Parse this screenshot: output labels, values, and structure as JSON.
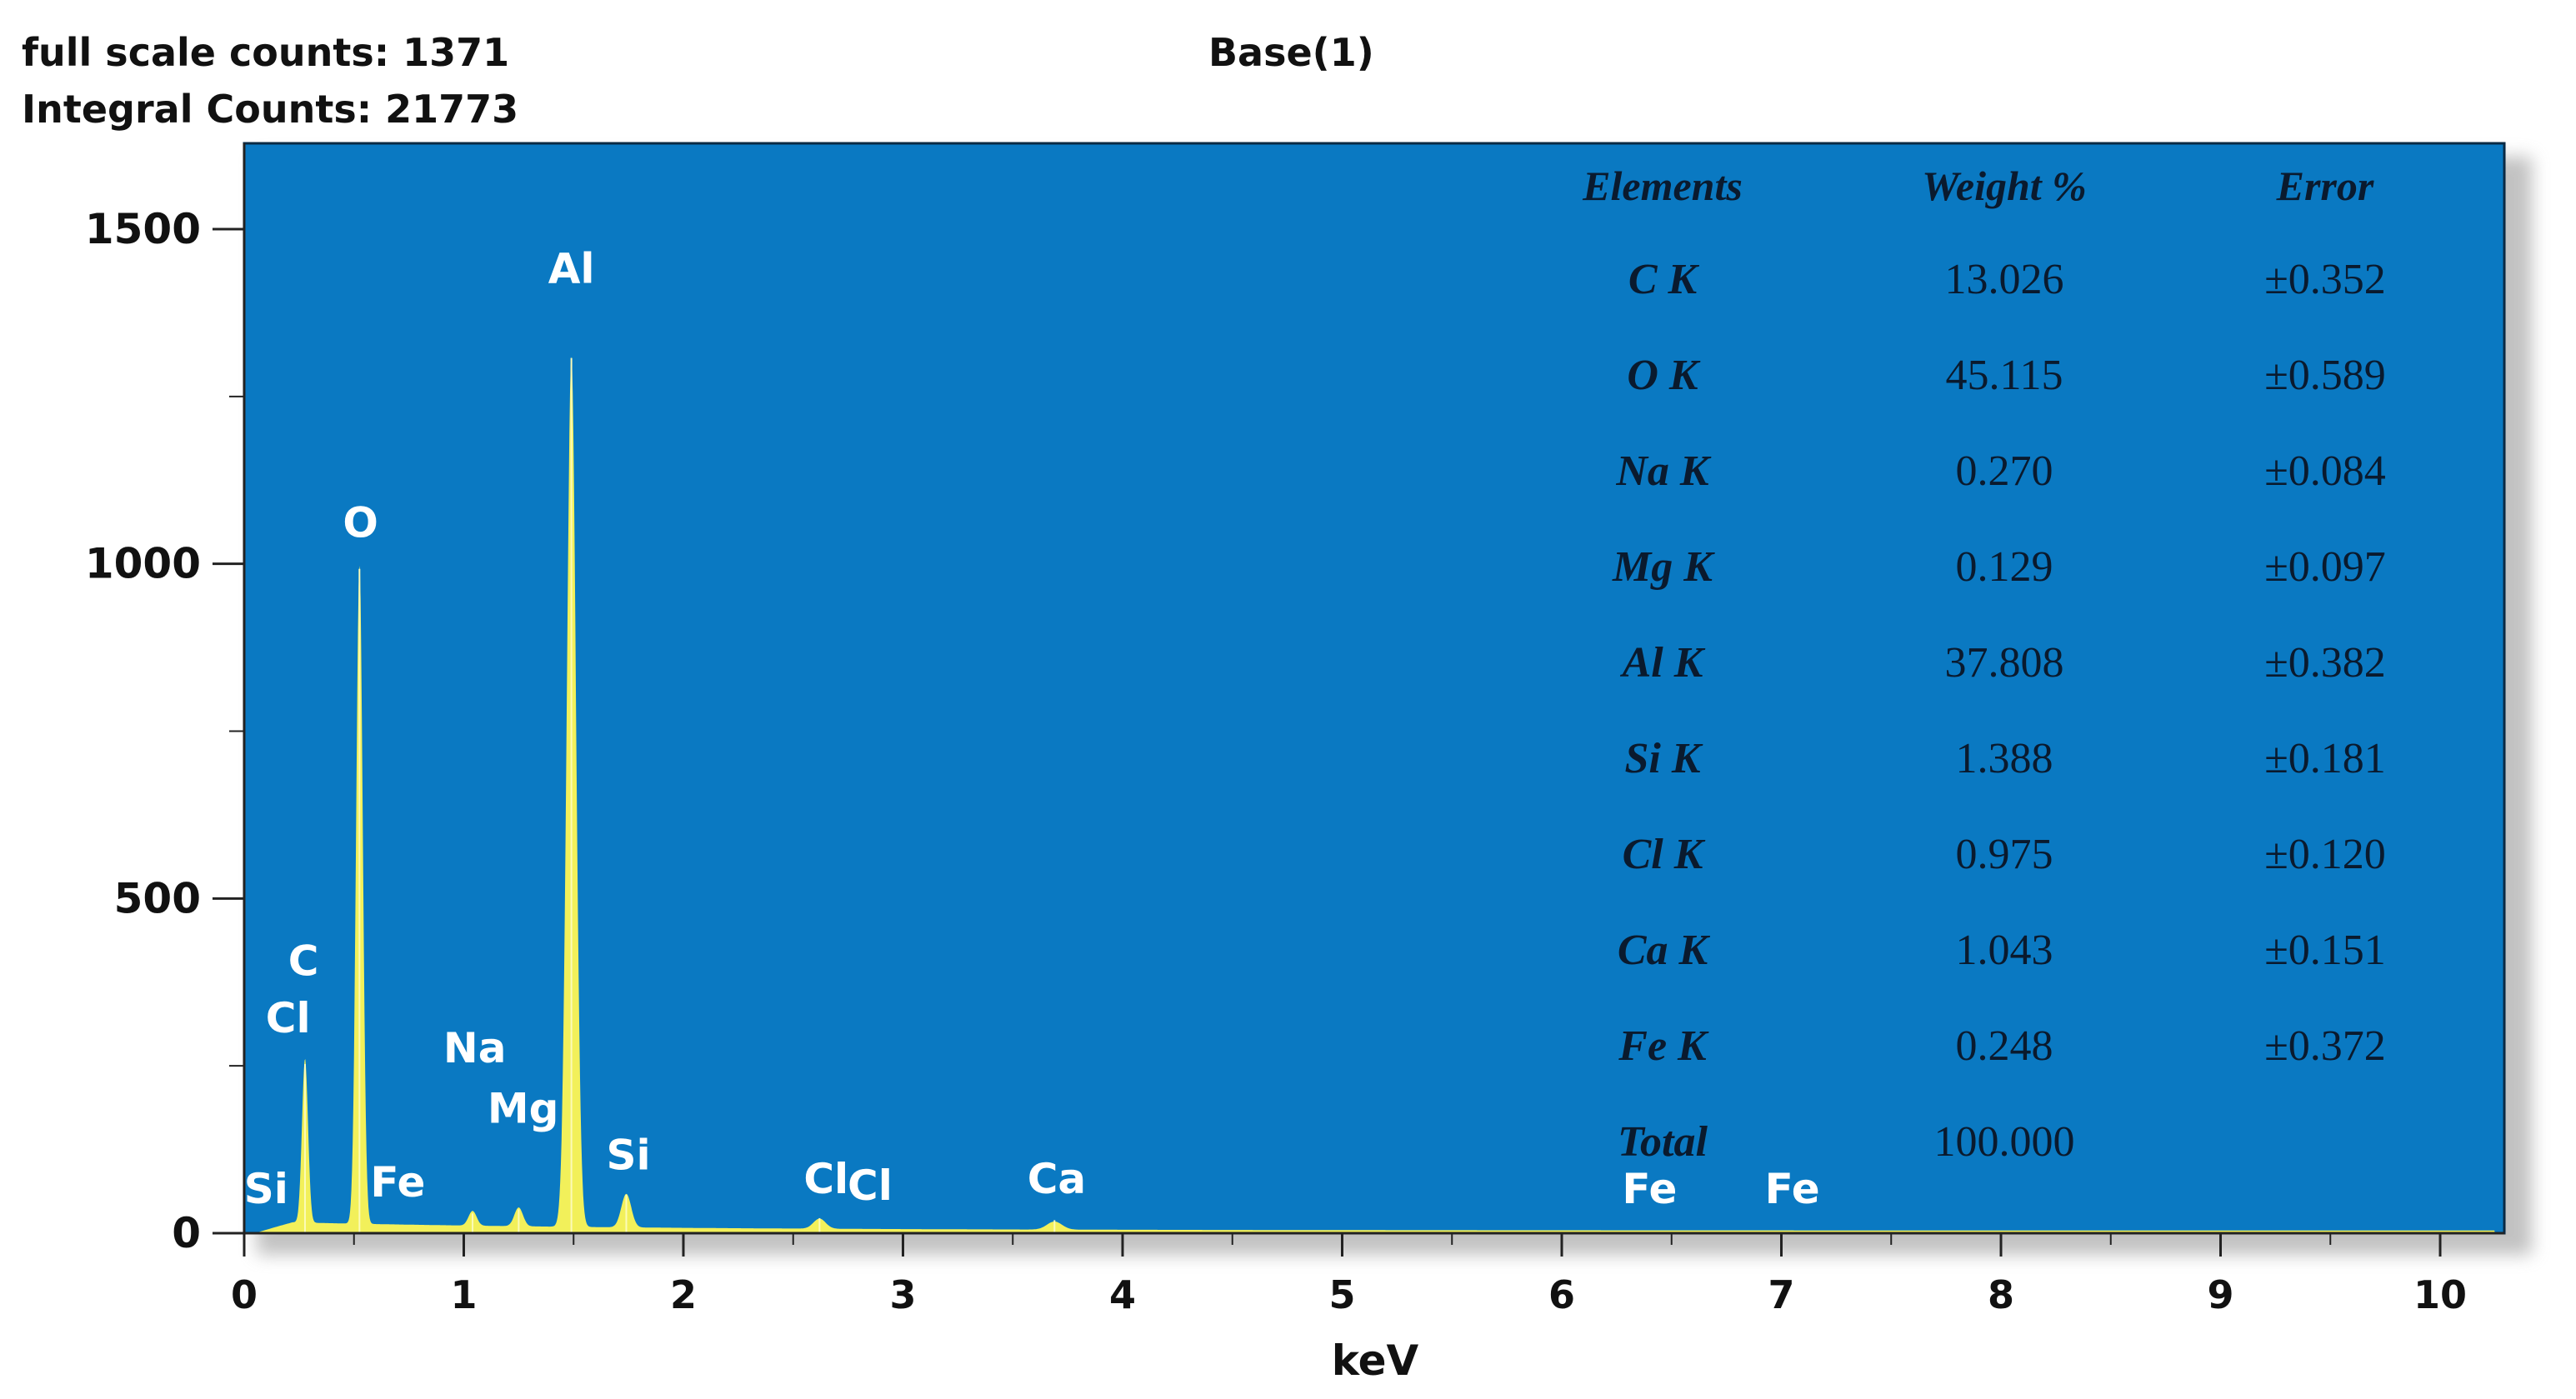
{
  "header": {
    "full_scale": "full scale counts: 1371",
    "integral": "Integral Counts: 21773",
    "title": "Base(1)"
  },
  "colors": {
    "plot_bg": "#0a79c2",
    "spectrum": "#f2f05a",
    "text_dark": "#111111"
  },
  "chart_data": {
    "type": "area",
    "title": "Base(1)",
    "xlabel": "keV",
    "ylabel": "",
    "xlim": [
      0,
      10.3
    ],
    "ylim": [
      0,
      1500
    ],
    "x_ticks": [
      "0",
      "1",
      "2",
      "3",
      "4",
      "5",
      "6",
      "7",
      "8",
      "9",
      "10"
    ],
    "y_ticks": [
      "0",
      "500",
      "1000",
      "1500"
    ],
    "grid": false,
    "peaks": [
      {
        "label": "C",
        "energy": 0.277,
        "counts": 245
      },
      {
        "label": "O",
        "energy": 0.525,
        "counts": 985
      },
      {
        "label": "Na",
        "energy": 1.04,
        "counts": 22
      },
      {
        "label": "Mg",
        "energy": 1.25,
        "counts": 28
      },
      {
        "label": "Al",
        "energy": 1.49,
        "counts": 1300
      },
      {
        "label": "Si",
        "energy": 1.74,
        "counts": 50
      },
      {
        "label": "Cl",
        "energy": 2.62,
        "counts": 15
      },
      {
        "label": "Ca",
        "energy": 3.69,
        "counts": 12
      }
    ],
    "peak_labels": [
      {
        "text": "Al",
        "energy": 1.49,
        "counts": 1420
      },
      {
        "text": "O",
        "energy": 0.53,
        "counts": 1040
      },
      {
        "text": "C",
        "energy": 0.27,
        "counts": 385
      },
      {
        "text": "Cl",
        "energy": 0.2,
        "counts": 300
      },
      {
        "text": "Na",
        "energy": 1.05,
        "counts": 255
      },
      {
        "text": "Mg",
        "energy": 1.27,
        "counts": 165
      },
      {
        "text": "Si",
        "energy": 1.75,
        "counts": 95
      },
      {
        "text": "Si",
        "energy": 0.1,
        "counts": 45
      },
      {
        "text": "Fe",
        "energy": 0.7,
        "counts": 55
      },
      {
        "text": "Cl",
        "energy": 2.65,
        "counts": 60
      },
      {
        "text": "Cl",
        "energy": 2.85,
        "counts": 50
      },
      {
        "text": "Ca",
        "energy": 3.7,
        "counts": 60
      },
      {
        "text": "Fe",
        "energy": 6.4,
        "counts": 45
      },
      {
        "text": "Fe",
        "energy": 7.05,
        "counts": 45
      }
    ],
    "table": {
      "columns": [
        "Elements",
        "Weight %",
        "Error"
      ],
      "rows": [
        [
          "C K",
          "13.026",
          "±0.352"
        ],
        [
          "O K",
          "45.115",
          "±0.589"
        ],
        [
          "Na K",
          "0.270",
          "±0.084"
        ],
        [
          "Mg K",
          "0.129",
          "±0.097"
        ],
        [
          "Al K",
          "37.808",
          "±0.382"
        ],
        [
          "Si K",
          "1.388",
          "±0.181"
        ],
        [
          "Cl K",
          "0.975",
          "±0.120"
        ],
        [
          "Ca K",
          "1.043",
          "±0.151"
        ],
        [
          "Fe K",
          "0.248",
          "±0.372"
        ],
        [
          "Total",
          "100.000",
          ""
        ]
      ]
    }
  }
}
